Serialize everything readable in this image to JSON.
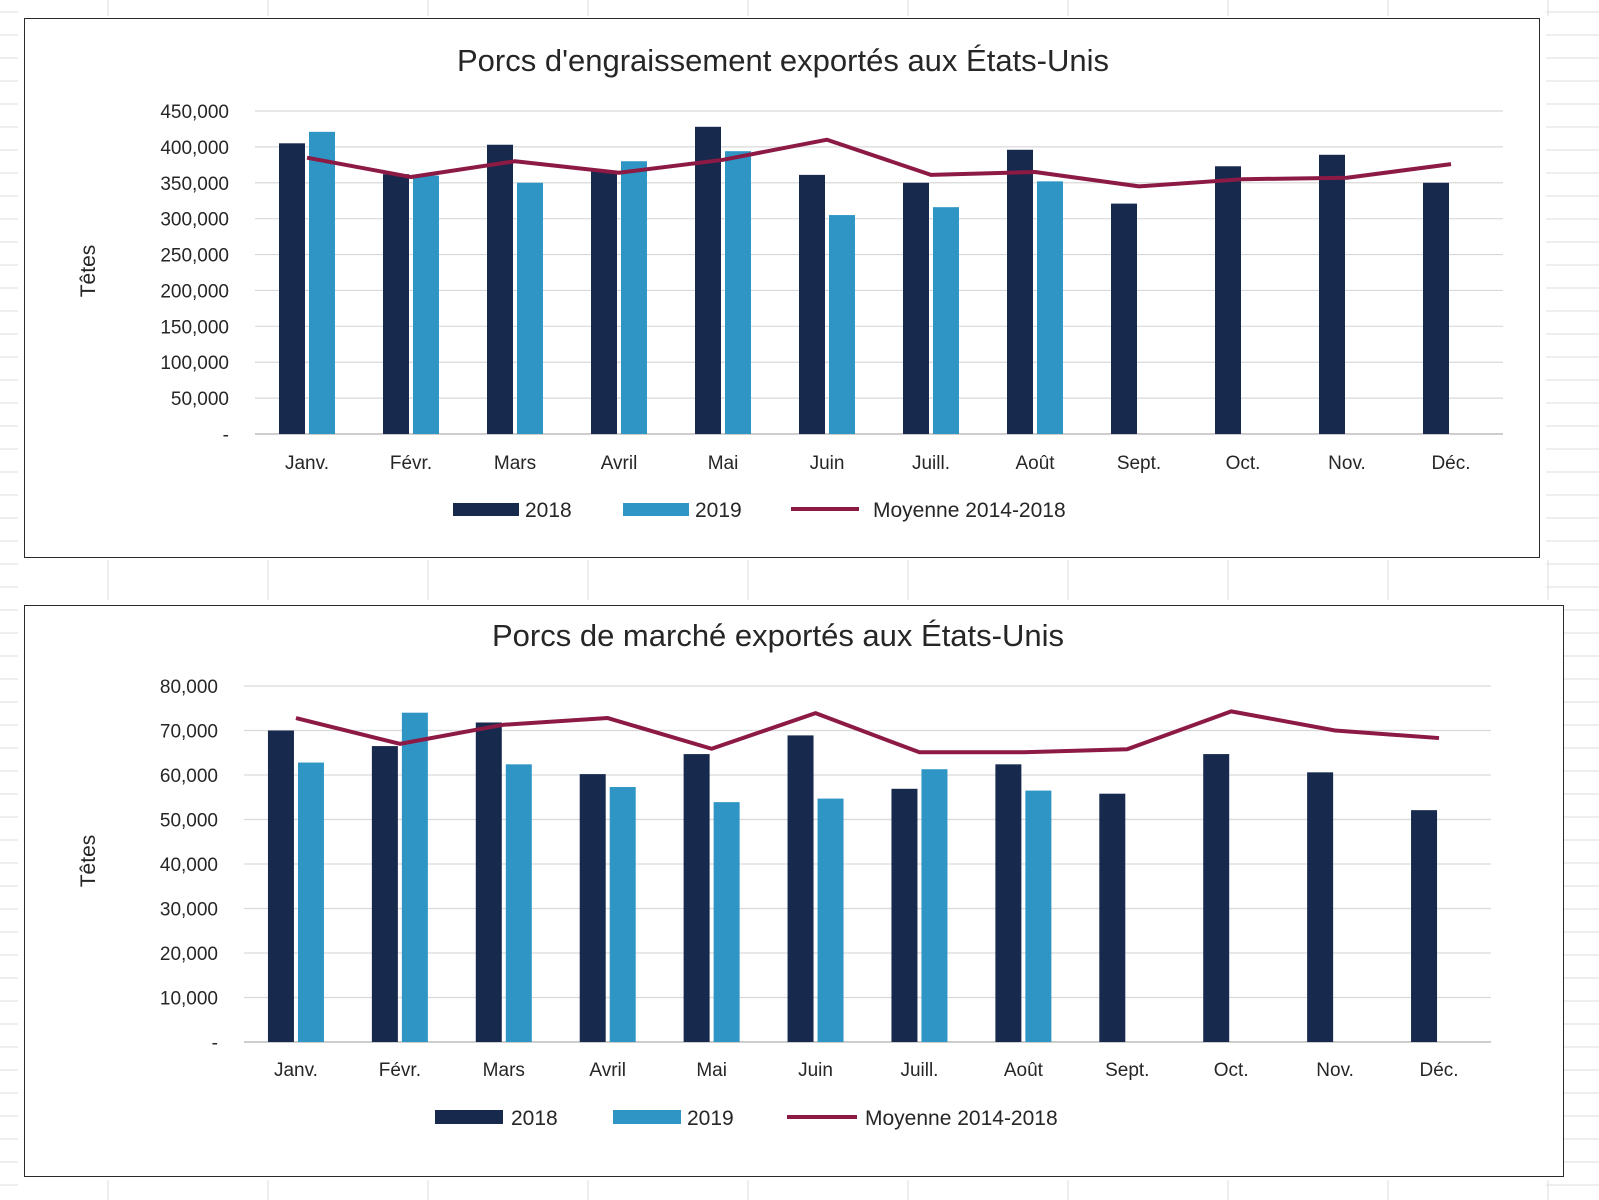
{
  "colors": {
    "series_2018": "#172a4e",
    "series_2019": "#2e95c4",
    "average": "#8c1a44",
    "gridline": "#d9d9d9",
    "text": "#262626"
  },
  "chart_data": [
    {
      "type": "bar",
      "title": "Porcs d'engraissement exportés aux États-Unis",
      "ylabel": "Têtes",
      "xlabel": "",
      "categories": [
        "Janv.",
        "Févr.",
        "Mars",
        "Avril",
        "Mai",
        "Juin",
        "Juill.",
        "Août",
        "Sept.",
        "Oct.",
        "Nov.",
        "Déc."
      ],
      "ylim": [
        0,
        450000
      ],
      "yticks": [
        "-",
        "50,000",
        "100,000",
        "150,000",
        "200,000",
        "250,000",
        "300,000",
        "350,000",
        "400,000",
        "450,000"
      ],
      "grid": true,
      "legend_position": "bottom",
      "series": [
        {
          "name": "2018",
          "kind": "bar",
          "values": [
            405000,
            362000,
            403000,
            366000,
            428000,
            361000,
            350000,
            396000,
            321000,
            373000,
            389000,
            350000
          ]
        },
        {
          "name": "2019",
          "kind": "bar",
          "values": [
            421000,
            360000,
            350000,
            380000,
            394000,
            305000,
            316000,
            352000,
            null,
            null,
            null,
            null
          ]
        },
        {
          "name": "Moyenne 2014-2018",
          "kind": "line",
          "values": [
            385000,
            358000,
            380000,
            364000,
            382000,
            410000,
            361000,
            365000,
            345000,
            355000,
            357000,
            376000
          ]
        }
      ]
    },
    {
      "type": "bar",
      "title": "Porcs de marché exportés aux États-Unis",
      "ylabel": "Têtes",
      "xlabel": "",
      "categories": [
        "Janv.",
        "Févr.",
        "Mars",
        "Avril",
        "Mai",
        "Juin",
        "Juill.",
        "Août",
        "Sept.",
        "Oct.",
        "Nov.",
        "Déc."
      ],
      "ylim": [
        0,
        80000
      ],
      "yticks": [
        "-",
        "10,000",
        "20,000",
        "30,000",
        "40,000",
        "50,000",
        "60,000",
        "70,000",
        "80,000"
      ],
      "grid": true,
      "legend_position": "bottom",
      "series": [
        {
          "name": "2018",
          "kind": "bar",
          "values": [
            70000,
            66500,
            71800,
            60200,
            64700,
            68900,
            56900,
            62400,
            55800,
            64700,
            60600,
            52100
          ]
        },
        {
          "name": "2019",
          "kind": "bar",
          "values": [
            62800,
            74000,
            62400,
            57300,
            53900,
            54700,
            61300,
            56500,
            null,
            null,
            null,
            null
          ]
        },
        {
          "name": "Moyenne 2014-2018",
          "kind": "line",
          "values": [
            72800,
            67000,
            71300,
            72800,
            65900,
            73900,
            65100,
            65100,
            65800,
            74300,
            70000,
            68300
          ]
        }
      ]
    }
  ]
}
